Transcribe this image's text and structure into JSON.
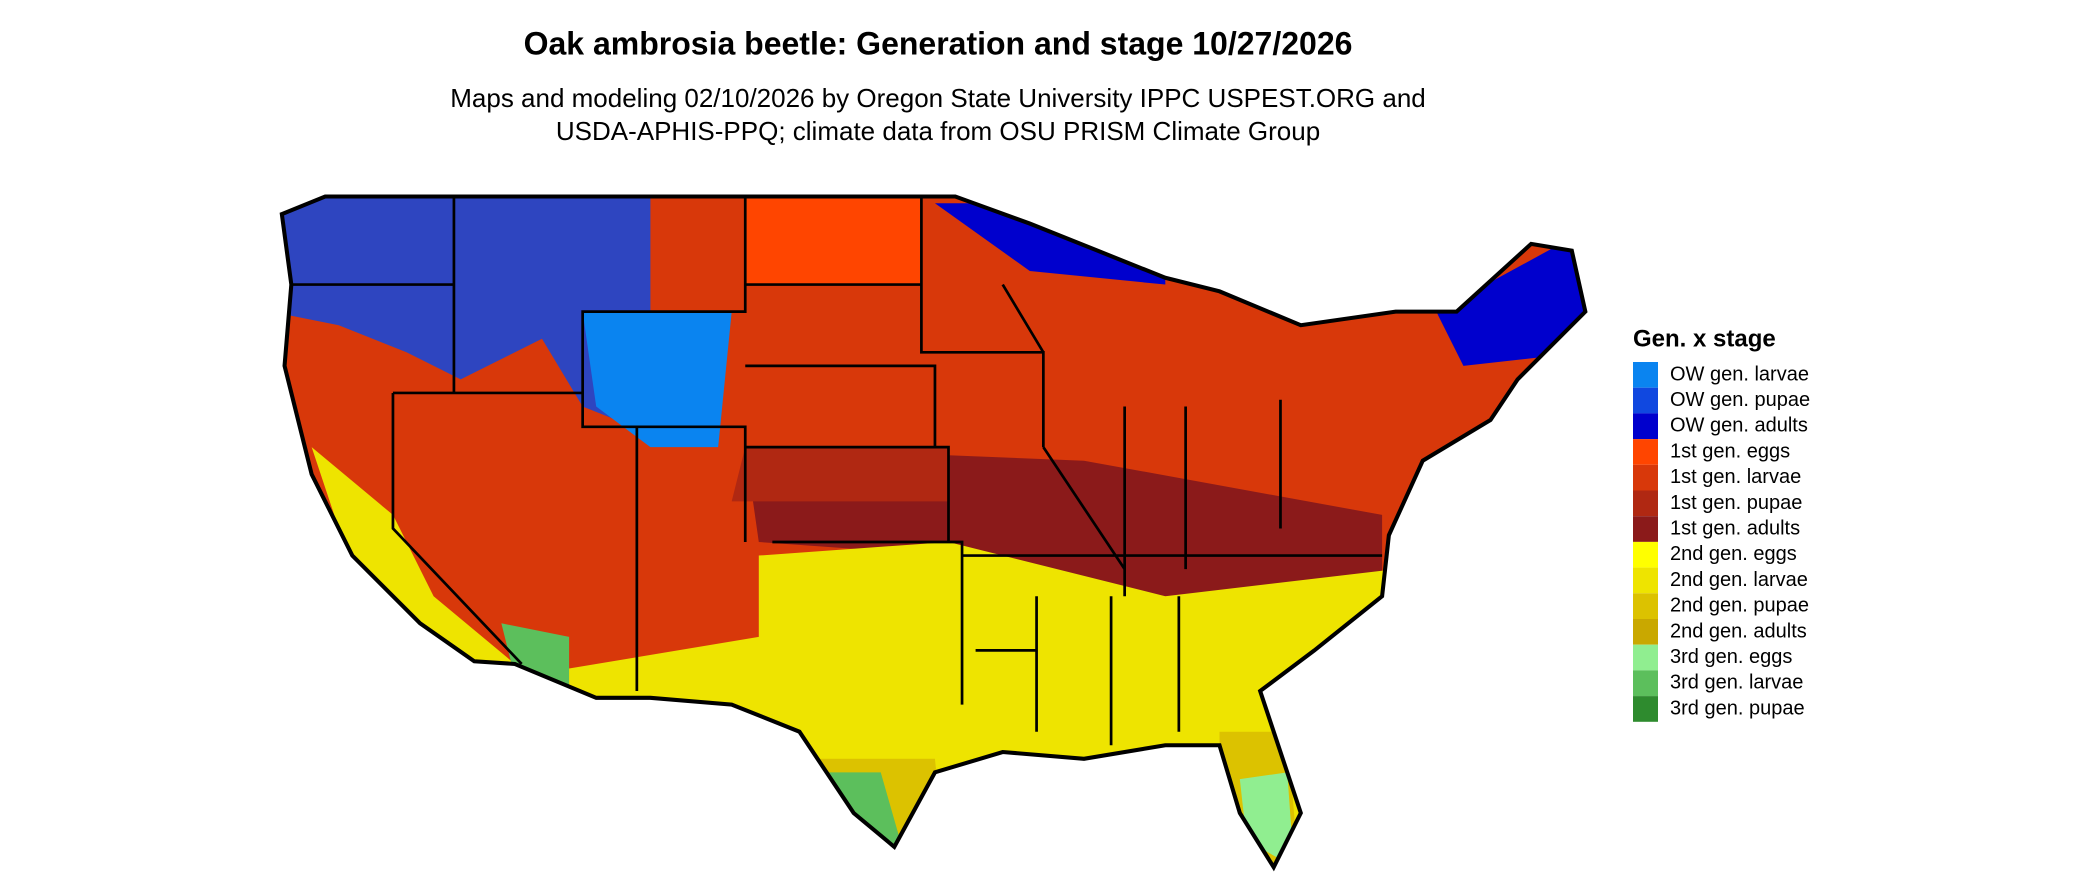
{
  "title": "Oak ambrosia beetle: Generation and stage 10/27/2026",
  "subtitle": [
    "Maps and modeling 02/10/2026 by Oregon State University IPPC USPEST.ORG and",
    "USDA-APHIS-PPQ; climate data from OSU PRISM Climate Group"
  ],
  "legend": {
    "title": "Gen. x stage",
    "items": [
      {
        "label": "OW gen. larvae",
        "color": "#0a84f0"
      },
      {
        "label": "OW gen. pupae",
        "color": "#1048e0"
      },
      {
        "label": "OW gen. adults",
        "color": "#0000cd"
      },
      {
        "label": "1st gen. eggs",
        "color": "#ff4500"
      },
      {
        "label": "1st gen. larvae",
        "color": "#d8380a"
      },
      {
        "label": "1st gen. pupae",
        "color": "#b02812"
      },
      {
        "label": "1st gen. adults",
        "color": "#8b1a1a"
      },
      {
        "label": "2nd gen. eggs",
        "color": "#ffff00"
      },
      {
        "label": "2nd gen. larvae",
        "color": "#eee400"
      },
      {
        "label": "2nd gen. pupae",
        "color": "#dcc200"
      },
      {
        "label": "2nd gen. adults",
        "color": "#c9a800"
      },
      {
        "label": "3rd gen. eggs",
        "color": "#90ee90"
      },
      {
        "label": "3rd gen. larvae",
        "color": "#5cbf5c"
      },
      {
        "label": "3rd gen. pupae",
        "color": "#2e8b2e"
      }
    ]
  }
}
